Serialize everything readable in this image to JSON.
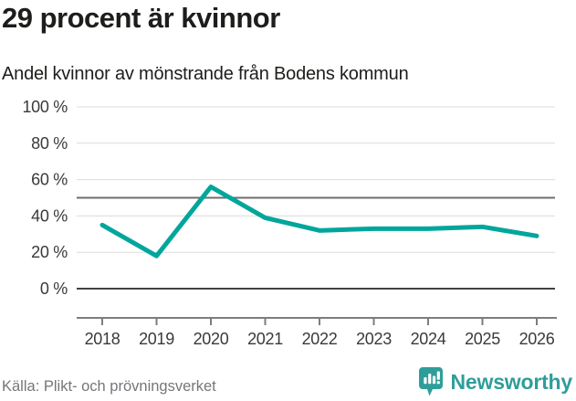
{
  "header": {
    "title": "29 procent är kvinnor",
    "subtitle": "Andel kvinnor av mönstrande från Bodens kommun"
  },
  "chart_data": {
    "type": "line",
    "title": "29 procent är kvinnor",
    "subtitle": "Andel kvinnor av mönstrande från Bodens kommun",
    "x": [
      "2018",
      "2019",
      "2020",
      "2021",
      "2022",
      "2023",
      "2024",
      "2025",
      "2026"
    ],
    "series": [
      {
        "name": "Andel kvinnor av mönstrande från Bodens kommun",
        "color": "#00a69c",
        "values": [
          35,
          18,
          56,
          39,
          32,
          33,
          33,
          34,
          29
        ]
      }
    ],
    "ylim": [
      0,
      100
    ],
    "yticks": [
      0,
      20,
      40,
      60,
      80,
      100
    ],
    "ytick_suffix": " %",
    "reference_line": 50,
    "grid": "horizontal",
    "legend": "none",
    "colors": {
      "grid": "#dcdcdc",
      "reference": "#6e6e6e",
      "zero": "#414141",
      "axis": "#7d7d7d",
      "tick_label": "#3a3a3a"
    }
  },
  "footer": {
    "source": "Källa: Plikt- och prövningsverket",
    "brand": "Newsworthy",
    "brand_color": "#2f9e9a"
  }
}
